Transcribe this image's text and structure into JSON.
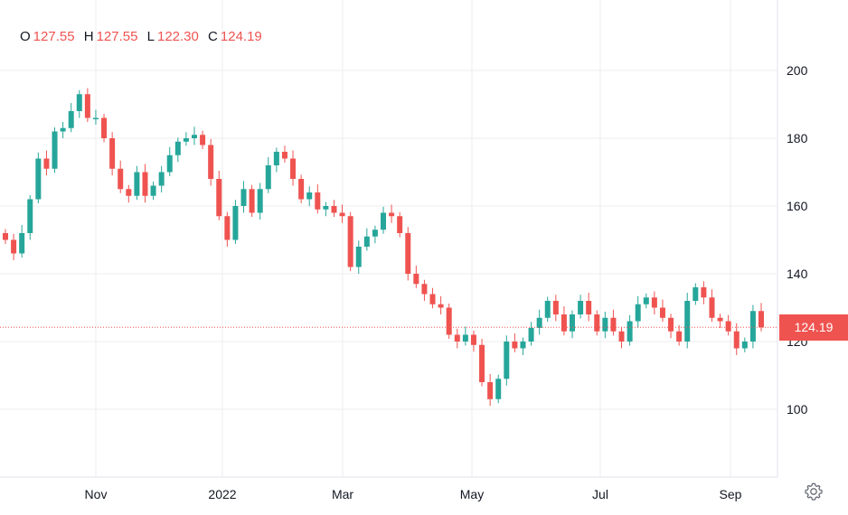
{
  "ohlc": {
    "o_label": "O",
    "o_value": "127.55",
    "h_label": "H",
    "h_value": "127.55",
    "l_label": "L",
    "l_value": "122.30",
    "c_label": "C",
    "c_value": "124.19"
  },
  "last_price_label": "124.19",
  "settings_icon": "gear-icon",
  "colors": {
    "up": "#26a69a",
    "down": "#ef5350",
    "grid": "#eeeeee",
    "text": "#131722"
  },
  "chart_data": {
    "type": "candlestick",
    "title": "",
    "xlabel": "",
    "ylabel": "",
    "y_ticks": [
      "200",
      "180",
      "160",
      "140",
      "120",
      "100"
    ],
    "ylim": [
      80,
      220
    ],
    "x_ticks": [
      "Nov",
      "2022",
      "Mar",
      "May",
      "Jul",
      "Sep"
    ],
    "last_price": 124.19,
    "grid": true,
    "points": [
      {
        "d": "Oct 12",
        "c": 150
      },
      {
        "d": "Oct 14",
        "c": 146
      },
      {
        "d": "Oct 18",
        "c": 152
      },
      {
        "d": "Oct 21",
        "c": 162
      },
      {
        "d": "Oct 25",
        "c": 174
      },
      {
        "d": "Oct 28",
        "c": 171
      },
      {
        "d": "Nov 01",
        "c": 182
      },
      {
        "d": "Nov 04",
        "c": 183
      },
      {
        "d": "Nov 08",
        "c": 188
      },
      {
        "d": "Nov 10",
        "c": 193
      },
      {
        "d": "Nov 12",
        "c": 186
      },
      {
        "d": "Nov 16",
        "c": 186
      },
      {
        "d": "Nov 19",
        "c": 180
      },
      {
        "d": "Nov 23",
        "c": 171
      },
      {
        "d": "Nov 26",
        "c": 165
      },
      {
        "d": "Nov 30",
        "c": 163
      },
      {
        "d": "Dec 03",
        "c": 170
      },
      {
        "d": "Dec 07",
        "c": 163
      },
      {
        "d": "Dec 10",
        "c": 166
      },
      {
        "d": "Dec 14",
        "c": 170
      },
      {
        "d": "Dec 17",
        "c": 175
      },
      {
        "d": "Dec 21",
        "c": 179
      },
      {
        "d": "Dec 24",
        "c": 180
      },
      {
        "d": "Dec 28",
        "c": 181
      },
      {
        "d": "Dec 31",
        "c": 178
      },
      {
        "d": "Jan 04",
        "c": 168
      },
      {
        "d": "Jan 07",
        "c": 157
      },
      {
        "d": "Jan 11",
        "c": 150
      },
      {
        "d": "Jan 14",
        "c": 160
      },
      {
        "d": "Jan 18",
        "c": 165
      },
      {
        "d": "Jan 21",
        "c": 158
      },
      {
        "d": "Jan 25",
        "c": 165
      },
      {
        "d": "Jan 28",
        "c": 172
      },
      {
        "d": "Feb 01",
        "c": 176
      },
      {
        "d": "Feb 04",
        "c": 174
      },
      {
        "d": "Feb 08",
        "c": 168
      },
      {
        "d": "Feb 11",
        "c": 162
      },
      {
        "d": "Feb 15",
        "c": 164
      },
      {
        "d": "Feb 18",
        "c": 159
      },
      {
        "d": "Feb 22",
        "c": 160
      },
      {
        "d": "Feb 25",
        "c": 158
      },
      {
        "d": "Mar 01",
        "c": 157
      },
      {
        "d": "Mar 04",
        "c": 142
      },
      {
        "d": "Mar 08",
        "c": 148
      },
      {
        "d": "Mar 11",
        "c": 151
      },
      {
        "d": "Mar 15",
        "c": 153
      },
      {
        "d": "Mar 18",
        "c": 158
      },
      {
        "d": "Mar 22",
        "c": 157
      },
      {
        "d": "Mar 25",
        "c": 152
      },
      {
        "d": "Mar 29",
        "c": 140
      },
      {
        "d": "Apr 01",
        "c": 137
      },
      {
        "d": "Apr 05",
        "c": 134
      },
      {
        "d": "Apr 08",
        "c": 131
      },
      {
        "d": "Apr 12",
        "c": 130
      },
      {
        "d": "Apr 15",
        "c": 122
      },
      {
        "d": "Apr 19",
        "c": 120
      },
      {
        "d": "Apr 22",
        "c": 122
      },
      {
        "d": "Apr 26",
        "c": 119
      },
      {
        "d": "Apr 29",
        "c": 108
      },
      {
        "d": "May 03",
        "c": 103
      },
      {
        "d": "May 06",
        "c": 109
      },
      {
        "d": "May 10",
        "c": 120
      },
      {
        "d": "May 13",
        "c": 118
      },
      {
        "d": "May 17",
        "c": 120
      },
      {
        "d": "May 20",
        "c": 124
      },
      {
        "d": "May 24",
        "c": 127
      },
      {
        "d": "May 27",
        "c": 132
      },
      {
        "d": "May 31",
        "c": 128
      },
      {
        "d": "Jun 03",
        "c": 123
      },
      {
        "d": "Jun 07",
        "c": 128
      },
      {
        "d": "Jun 10",
        "c": 132
      },
      {
        "d": "Jun 14",
        "c": 128
      },
      {
        "d": "Jun 17",
        "c": 123
      },
      {
        "d": "Jun 21",
        "c": 127
      },
      {
        "d": "Jun 24",
        "c": 123
      },
      {
        "d": "Jun 28",
        "c": 120
      },
      {
        "d": "Jul 01",
        "c": 126
      },
      {
        "d": "Jul 05",
        "c": 131
      },
      {
        "d": "Jul 08",
        "c": 133
      },
      {
        "d": "Jul 12",
        "c": 130
      },
      {
        "d": "Jul 15",
        "c": 127
      },
      {
        "d": "Jul 19",
        "c": 123
      },
      {
        "d": "Jul 22",
        "c": 120
      },
      {
        "d": "Jul 26",
        "c": 132
      },
      {
        "d": "Jul 29",
        "c": 136
      },
      {
        "d": "Aug 02",
        "c": 133
      },
      {
        "d": "Aug 05",
        "c": 127
      },
      {
        "d": "Aug 09",
        "c": 126
      },
      {
        "d": "Aug 12",
        "c": 123
      },
      {
        "d": "Aug 16",
        "c": 118
      },
      {
        "d": "Aug 19",
        "c": 120
      },
      {
        "d": "Aug 23",
        "c": 129
      },
      {
        "d": "Aug 26",
        "c": 124.19
      }
    ]
  }
}
